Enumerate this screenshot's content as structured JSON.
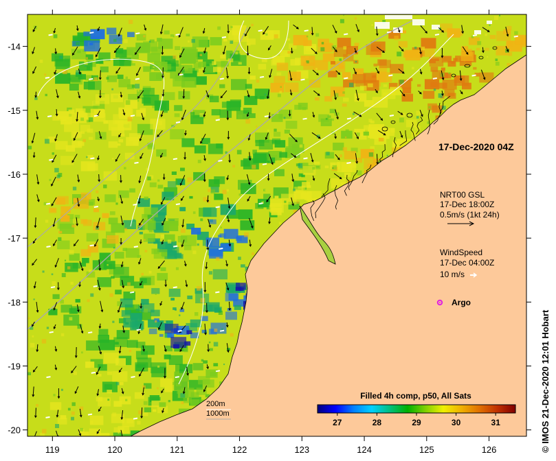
{
  "map": {
    "date_label": "17-Dec-2020 04Z",
    "lon_range": [
      118.6,
      126.6
    ],
    "lat_range": [
      -13.5,
      -20.1
    ],
    "lon_ticks": [
      {
        "v": 119,
        "t": "119"
      },
      {
        "v": 120,
        "t": "120"
      },
      {
        "v": 121,
        "t": "121"
      },
      {
        "v": 122,
        "t": "122"
      },
      {
        "v": 123,
        "t": "123"
      },
      {
        "v": 124,
        "t": "124"
      },
      {
        "v": 125,
        "t": "125"
      },
      {
        "v": 126,
        "t": "126"
      }
    ],
    "lat_ticks": [
      {
        "v": -14,
        "t": "-14"
      },
      {
        "v": -15,
        "t": "-15"
      },
      {
        "v": -16,
        "t": "-16"
      },
      {
        "v": -17,
        "t": "-17"
      },
      {
        "v": -18,
        "t": "-18"
      },
      {
        "v": -19,
        "t": "-19"
      },
      {
        "v": -20,
        "t": "-20"
      }
    ],
    "colors": {
      "land": "#fdc99a",
      "coast": "#000000",
      "isobath_200": "#ffffff",
      "isobath_1000": "#aaaaaa",
      "current_arrow": "#000000",
      "wind_arrow": "#ffffff",
      "argo": "#e020e0"
    }
  },
  "legend": {
    "current": {
      "title": "NRT00 GSL",
      "time": "17-Dec 18:00Z",
      "scale": "0.5m/s (1kt 24h)"
    },
    "wind": {
      "title": "WindSpeed",
      "time": "17-Dec 04:00Z",
      "scale": "10 m/s"
    },
    "argo": "Argo",
    "isobaths": [
      "200m",
      "1000m"
    ]
  },
  "colorbar": {
    "title": "Filled 4h comp, p50, All Sats",
    "range": [
      26.5,
      31.5
    ],
    "ticks": [
      {
        "v": 27,
        "t": "27"
      },
      {
        "v": 28,
        "t": "28"
      },
      {
        "v": 29,
        "t": "29"
      },
      {
        "v": 30,
        "t": "30"
      },
      {
        "v": 31,
        "t": "31"
      }
    ],
    "stops": [
      "#00007e",
      "#0000ff",
      "#0080ff",
      "#00d0ff",
      "#00c080",
      "#00b000",
      "#80d000",
      "#f0f000",
      "#f0b000",
      "#e07000",
      "#c03000",
      "#800000"
    ]
  },
  "credit": "© IMOS 21-Dec-2020 12:01 Hobart"
}
